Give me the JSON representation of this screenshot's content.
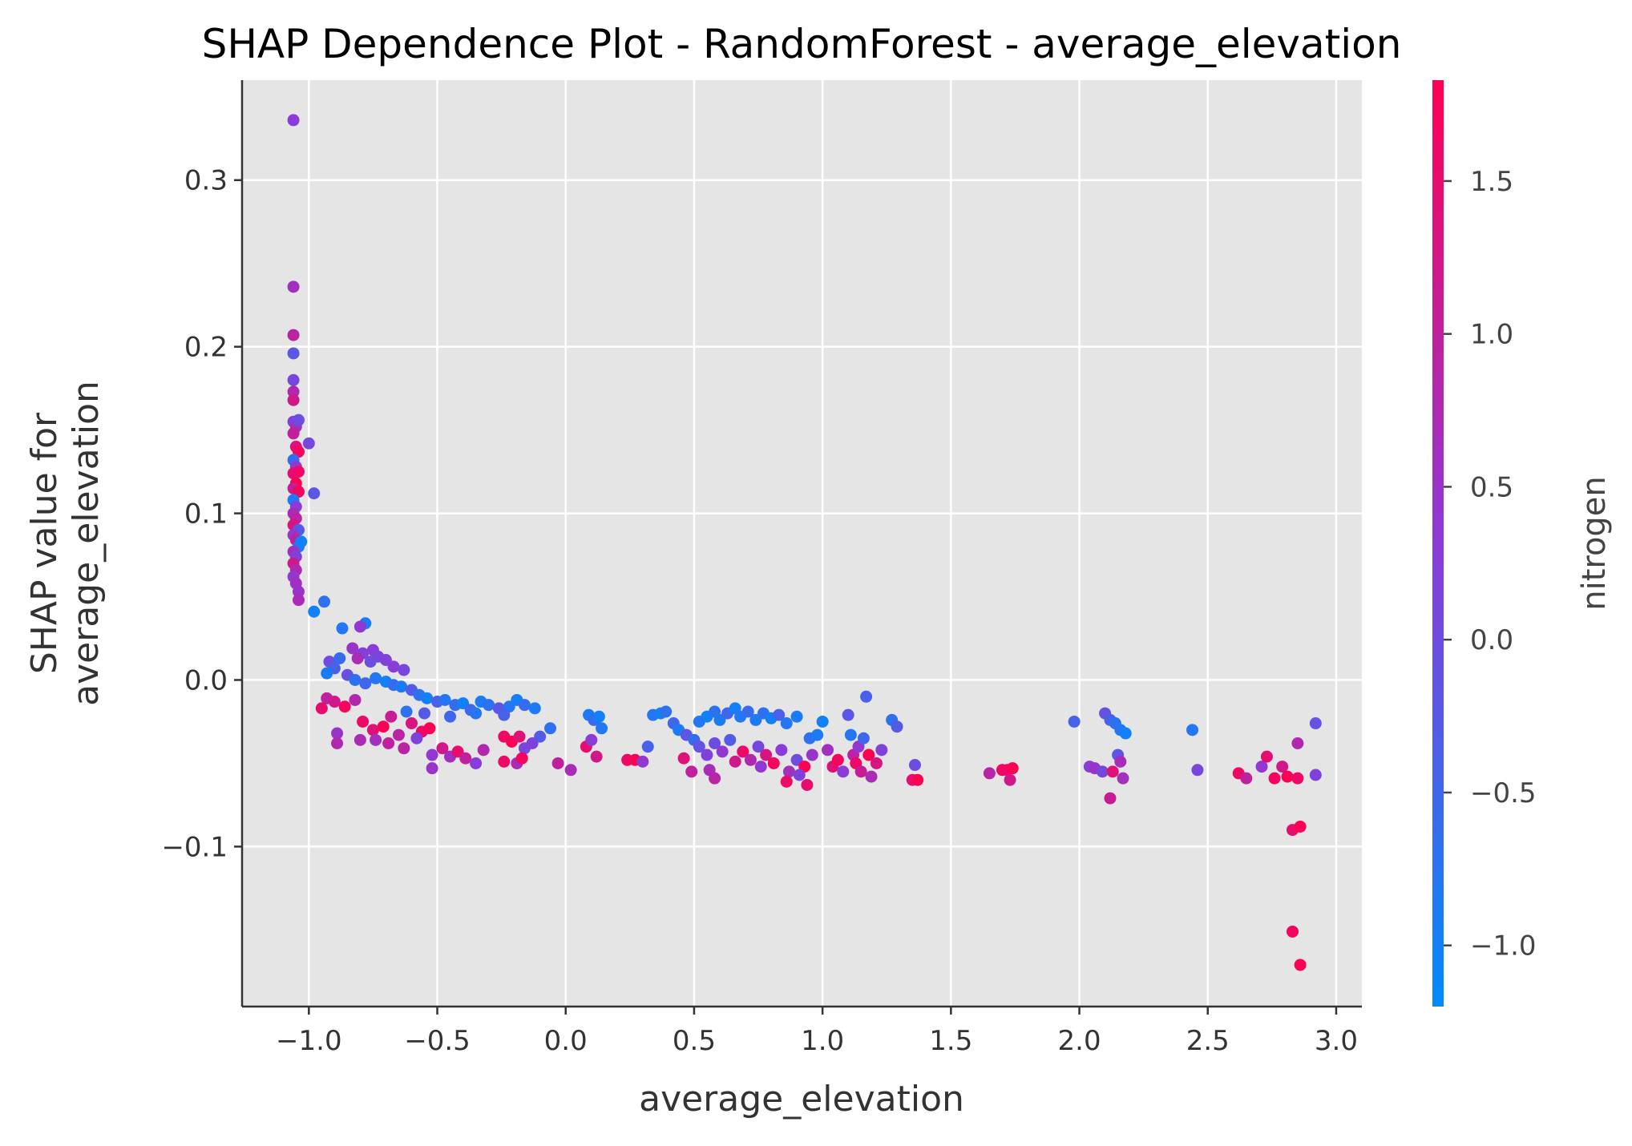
{
  "chart_data": {
    "type": "scatter",
    "title": "SHAP Dependence Plot - RandomForest - average_elevation",
    "xlabel": "average_elevation",
    "ylabel_line1": "SHAP value for",
    "ylabel_line2": "average_elevation",
    "xlim": [
      -1.26,
      3.1
    ],
    "ylim": [
      -0.196,
      0.36
    ],
    "x_ticks": [
      -1.0,
      -0.5,
      0.0,
      0.5,
      1.0,
      1.5,
      2.0,
      2.5,
      3.0
    ],
    "x_tick_labels": [
      "−1.0",
      "−0.5",
      "0.0",
      "0.5",
      "1.0",
      "1.5",
      "2.0",
      "2.5",
      "3.0"
    ],
    "y_ticks": [
      -0.1,
      0.0,
      0.1,
      0.2,
      0.3
    ],
    "y_tick_labels": [
      "−0.1",
      "0.0",
      "0.1",
      "0.2",
      "0.3"
    ],
    "grid": true,
    "colorbar": {
      "label": "nitrogen",
      "range": [
        -1.2,
        1.83
      ],
      "ticks": [
        -1.0,
        -0.5,
        0.0,
        0.5,
        1.0,
        1.5
      ],
      "tick_labels": [
        "−1.0",
        "−0.5",
        "0.0",
        "0.5",
        "1.0",
        "1.5"
      ],
      "colors": [
        "#008bfb",
        "#8b3bd8",
        "#ff0052"
      ]
    },
    "colors": {
      "plot_bg": "#e5e5e5",
      "grid": "#ffffff",
      "axis": "#333333"
    },
    "points": [
      {
        "x": -1.06,
        "y": 0.336,
        "c": 0.3
      },
      {
        "x": -1.06,
        "y": 0.236,
        "c": 0.6
      },
      {
        "x": -1.06,
        "y": 0.207,
        "c": 0.9
      },
      {
        "x": -1.06,
        "y": 0.196,
        "c": -0.2
      },
      {
        "x": -1.06,
        "y": 0.18,
        "c": 0.1
      },
      {
        "x": -1.06,
        "y": 0.173,
        "c": 0.8
      },
      {
        "x": -1.06,
        "y": 0.168,
        "c": 1.2
      },
      {
        "x": -1.06,
        "y": 0.155,
        "c": 0.2
      },
      {
        "x": -1.05,
        "y": 0.152,
        "c": 0.6
      },
      {
        "x": -1.06,
        "y": 0.148,
        "c": 1.0
      },
      {
        "x": -1.04,
        "y": 0.156,
        "c": 0.0
      },
      {
        "x": -1.05,
        "y": 0.14,
        "c": 1.4
      },
      {
        "x": -1.04,
        "y": 0.137,
        "c": 1.7
      },
      {
        "x": -1.06,
        "y": 0.132,
        "c": -0.6
      },
      {
        "x": -1.05,
        "y": 0.128,
        "c": 0.4
      },
      {
        "x": -1.06,
        "y": 0.124,
        "c": 1.5
      },
      {
        "x": -1.04,
        "y": 0.125,
        "c": 1.6
      },
      {
        "x": -1.05,
        "y": 0.118,
        "c": 1.8
      },
      {
        "x": -1.06,
        "y": 0.115,
        "c": 1.1
      },
      {
        "x": -1.04,
        "y": 0.113,
        "c": 1.7
      },
      {
        "x": -1.06,
        "y": 0.108,
        "c": -0.9
      },
      {
        "x": -1.05,
        "y": 0.104,
        "c": 0.3
      },
      {
        "x": -1.06,
        "y": 0.1,
        "c": 0.7
      },
      {
        "x": -1.05,
        "y": 0.097,
        "c": 0.9
      },
      {
        "x": -1.06,
        "y": 0.093,
        "c": 1.3
      },
      {
        "x": -1.04,
        "y": 0.09,
        "c": -0.3
      },
      {
        "x": -1.06,
        "y": 0.087,
        "c": 0.5
      },
      {
        "x": -1.05,
        "y": 0.084,
        "c": 1.0
      },
      {
        "x": -1.04,
        "y": 0.08,
        "c": -0.8
      },
      {
        "x": -1.06,
        "y": 0.077,
        "c": 0.6
      },
      {
        "x": -1.05,
        "y": 0.074,
        "c": 0.2
      },
      {
        "x": -1.06,
        "y": 0.07,
        "c": 1.2
      },
      {
        "x": -1.05,
        "y": 0.066,
        "c": 0.8
      },
      {
        "x": -1.06,
        "y": 0.062,
        "c": 0.4
      },
      {
        "x": -1.05,
        "y": 0.058,
        "c": 0.6
      },
      {
        "x": -1.04,
        "y": 0.053,
        "c": 0.5
      },
      {
        "x": -1.04,
        "y": 0.048,
        "c": 0.7
      },
      {
        "x": -1.03,
        "y": 0.083,
        "c": -1.0
      },
      {
        "x": -1.0,
        "y": 0.142,
        "c": 0.1
      },
      {
        "x": -0.98,
        "y": 0.112,
        "c": -0.2
      },
      {
        "x": -0.98,
        "y": 0.041,
        "c": -1.0
      },
      {
        "x": -0.94,
        "y": 0.047,
        "c": -0.7
      },
      {
        "x": -0.87,
        "y": 0.031,
        "c": -0.8
      },
      {
        "x": -0.78,
        "y": 0.034,
        "c": -0.9
      },
      {
        "x": -0.8,
        "y": 0.032,
        "c": 0.4
      },
      {
        "x": -0.83,
        "y": 0.019,
        "c": 0.5
      },
      {
        "x": -0.79,
        "y": 0.016,
        "c": 0.2
      },
      {
        "x": -0.75,
        "y": 0.018,
        "c": 0.3
      },
      {
        "x": -0.73,
        "y": 0.014,
        "c": 0.1
      },
      {
        "x": -0.81,
        "y": 0.013,
        "c": 0.7
      },
      {
        "x": -0.76,
        "y": 0.011,
        "c": 0.0
      },
      {
        "x": -0.7,
        "y": 0.012,
        "c": 0.2
      },
      {
        "x": -0.67,
        "y": 0.008,
        "c": 0.3
      },
      {
        "x": -0.63,
        "y": 0.006,
        "c": 0.1
      },
      {
        "x": -0.92,
        "y": 0.011,
        "c": 0.0
      },
      {
        "x": -0.88,
        "y": 0.013,
        "c": -0.6
      },
      {
        "x": -0.9,
        "y": 0.007,
        "c": -0.4
      },
      {
        "x": -0.93,
        "y": 0.004,
        "c": -0.9
      },
      {
        "x": -0.85,
        "y": 0.003,
        "c": -0.1
      },
      {
        "x": -0.82,
        "y": 0.0,
        "c": -0.7
      },
      {
        "x": -0.78,
        "y": -0.002,
        "c": -0.5
      },
      {
        "x": -0.74,
        "y": 0.001,
        "c": -0.8
      },
      {
        "x": -0.7,
        "y": -0.001,
        "c": -1.0
      },
      {
        "x": -0.67,
        "y": -0.003,
        "c": -0.6
      },
      {
        "x": -0.64,
        "y": -0.004,
        "c": -0.9
      },
      {
        "x": -0.6,
        "y": -0.006,
        "c": -0.3
      },
      {
        "x": -0.57,
        "y": -0.009,
        "c": -0.7
      },
      {
        "x": -0.54,
        "y": -0.011,
        "c": -1.0
      },
      {
        "x": -0.5,
        "y": -0.013,
        "c": -0.4
      },
      {
        "x": -0.47,
        "y": -0.012,
        "c": -0.8
      },
      {
        "x": -0.43,
        "y": -0.015,
        "c": -0.6
      },
      {
        "x": -0.4,
        "y": -0.014,
        "c": -1.0
      },
      {
        "x": -0.37,
        "y": -0.018,
        "c": -0.5
      },
      {
        "x": -0.33,
        "y": -0.013,
        "c": -0.9
      },
      {
        "x": -0.3,
        "y": -0.015,
        "c": -0.7
      },
      {
        "x": -0.26,
        "y": -0.017,
        "c": -0.2
      },
      {
        "x": -0.22,
        "y": -0.016,
        "c": -0.8
      },
      {
        "x": -0.19,
        "y": -0.012,
        "c": -1.0
      },
      {
        "x": -0.16,
        "y": -0.015,
        "c": -0.6
      },
      {
        "x": -0.12,
        "y": -0.017,
        "c": -0.9
      },
      {
        "x": -0.55,
        "y": -0.02,
        "c": -0.3
      },
      {
        "x": -0.45,
        "y": -0.022,
        "c": -0.5
      },
      {
        "x": -0.35,
        "y": -0.02,
        "c": -0.8
      },
      {
        "x": -0.62,
        "y": -0.019,
        "c": -0.7
      },
      {
        "x": -0.24,
        "y": -0.021,
        "c": -0.4
      },
      {
        "x": -0.93,
        "y": -0.011,
        "c": 1.0
      },
      {
        "x": -0.95,
        "y": -0.017,
        "c": 1.5
      },
      {
        "x": -0.9,
        "y": -0.013,
        "c": 1.2
      },
      {
        "x": -0.86,
        "y": -0.016,
        "c": 1.7
      },
      {
        "x": -0.82,
        "y": -0.012,
        "c": 0.8
      },
      {
        "x": -0.79,
        "y": -0.025,
        "c": 1.6
      },
      {
        "x": -0.75,
        "y": -0.03,
        "c": 1.4
      },
      {
        "x": -0.71,
        "y": -0.028,
        "c": 1.8
      },
      {
        "x": -0.68,
        "y": -0.022,
        "c": 1.1
      },
      {
        "x": -0.65,
        "y": -0.033,
        "c": 0.9
      },
      {
        "x": -0.6,
        "y": -0.026,
        "c": 1.3
      },
      {
        "x": -0.56,
        "y": -0.031,
        "c": 1.6
      },
      {
        "x": -0.53,
        "y": -0.029,
        "c": 1.8
      },
      {
        "x": -0.74,
        "y": -0.036,
        "c": 0.6
      },
      {
        "x": -0.69,
        "y": -0.038,
        "c": 1.0
      },
      {
        "x": -0.8,
        "y": -0.036,
        "c": 0.7
      },
      {
        "x": -0.89,
        "y": -0.032,
        "c": 0.5
      },
      {
        "x": -0.89,
        "y": -0.038,
        "c": 0.8
      },
      {
        "x": -0.63,
        "y": -0.041,
        "c": 0.9
      },
      {
        "x": -0.58,
        "y": -0.035,
        "c": 0.2
      },
      {
        "x": -0.52,
        "y": -0.045,
        "c": 0.4
      },
      {
        "x": -0.48,
        "y": -0.041,
        "c": 1.2
      },
      {
        "x": -0.45,
        "y": -0.046,
        "c": 0.6
      },
      {
        "x": -0.42,
        "y": -0.043,
        "c": 1.5
      },
      {
        "x": -0.39,
        "y": -0.047,
        "c": 1.0
      },
      {
        "x": -0.35,
        "y": -0.05,
        "c": 0.3
      },
      {
        "x": -0.32,
        "y": -0.042,
        "c": 0.8
      },
      {
        "x": -0.52,
        "y": -0.053,
        "c": 0.5
      },
      {
        "x": -0.24,
        "y": -0.034,
        "c": 1.6
      },
      {
        "x": -0.21,
        "y": -0.037,
        "c": 1.8
      },
      {
        "x": -0.18,
        "y": -0.034,
        "c": 1.4
      },
      {
        "x": -0.16,
        "y": -0.041,
        "c": 0.1
      },
      {
        "x": -0.13,
        "y": -0.038,
        "c": 0.2
      },
      {
        "x": -0.24,
        "y": -0.049,
        "c": 1.6
      },
      {
        "x": -0.19,
        "y": -0.05,
        "c": 0.7
      },
      {
        "x": -0.17,
        "y": -0.047,
        "c": 1.7
      },
      {
        "x": -0.1,
        "y": -0.034,
        "c": -0.3
      },
      {
        "x": -0.06,
        "y": -0.029,
        "c": -0.7
      },
      {
        "x": -0.03,
        "y": -0.05,
        "c": 1.0
      },
      {
        "x": 0.02,
        "y": -0.054,
        "c": 0.7
      },
      {
        "x": 0.08,
        "y": -0.04,
        "c": 1.5
      },
      {
        "x": 0.1,
        "y": -0.036,
        "c": 0.3
      },
      {
        "x": 0.12,
        "y": -0.046,
        "c": 1.2
      },
      {
        "x": 0.09,
        "y": -0.021,
        "c": -0.9
      },
      {
        "x": 0.11,
        "y": -0.024,
        "c": -0.6
      },
      {
        "x": 0.13,
        "y": -0.022,
        "c": -1.0
      },
      {
        "x": 0.14,
        "y": -0.029,
        "c": -0.8
      },
      {
        "x": 0.24,
        "y": -0.048,
        "c": 1.6
      },
      {
        "x": 0.27,
        "y": -0.048,
        "c": 1.8
      },
      {
        "x": 0.3,
        "y": -0.049,
        "c": 0.4
      },
      {
        "x": 0.32,
        "y": -0.04,
        "c": -0.4
      },
      {
        "x": 0.34,
        "y": -0.021,
        "c": -0.8
      },
      {
        "x": 0.37,
        "y": -0.02,
        "c": -1.0
      },
      {
        "x": 0.39,
        "y": -0.019,
        "c": -0.7
      },
      {
        "x": 0.42,
        "y": -0.026,
        "c": -0.5
      },
      {
        "x": 0.44,
        "y": -0.03,
        "c": -0.9
      },
      {
        "x": 0.47,
        "y": -0.033,
        "c": -0.2
      },
      {
        "x": 0.5,
        "y": -0.036,
        "c": -0.6
      },
      {
        "x": 0.52,
        "y": -0.025,
        "c": -0.8
      },
      {
        "x": 0.55,
        "y": -0.022,
        "c": -1.0
      },
      {
        "x": 0.58,
        "y": -0.019,
        "c": -0.7
      },
      {
        "x": 0.6,
        "y": -0.024,
        "c": -0.9
      },
      {
        "x": 0.63,
        "y": -0.02,
        "c": -0.5
      },
      {
        "x": 0.66,
        "y": -0.017,
        "c": -1.0
      },
      {
        "x": 0.68,
        "y": -0.022,
        "c": -0.8
      },
      {
        "x": 0.71,
        "y": -0.019,
        "c": -0.6
      },
      {
        "x": 0.74,
        "y": -0.024,
        "c": -0.9
      },
      {
        "x": 0.77,
        "y": -0.02,
        "c": -0.7
      },
      {
        "x": 0.8,
        "y": -0.023,
        "c": -1.0
      },
      {
        "x": 0.83,
        "y": -0.021,
        "c": -0.4
      },
      {
        "x": 0.86,
        "y": -0.026,
        "c": -0.8
      },
      {
        "x": 0.9,
        "y": -0.022,
        "c": -0.9
      },
      {
        "x": 0.52,
        "y": -0.04,
        "c": -0.1
      },
      {
        "x": 0.55,
        "y": -0.045,
        "c": 0.2
      },
      {
        "x": 0.58,
        "y": -0.038,
        "c": 0.0
      },
      {
        "x": 0.61,
        "y": -0.043,
        "c": 0.4
      },
      {
        "x": 0.64,
        "y": -0.036,
        "c": -0.3
      },
      {
        "x": 0.69,
        "y": -0.043,
        "c": 1.6
      },
      {
        "x": 0.72,
        "y": -0.048,
        "c": 0.8
      },
      {
        "x": 0.75,
        "y": -0.04,
        "c": 0.1
      },
      {
        "x": 0.78,
        "y": -0.045,
        "c": 1.3
      },
      {
        "x": 0.81,
        "y": -0.05,
        "c": 1.7
      },
      {
        "x": 0.84,
        "y": -0.042,
        "c": 0.3
      },
      {
        "x": 0.87,
        "y": -0.055,
        "c": 0.6
      },
      {
        "x": 0.9,
        "y": -0.048,
        "c": 0.0
      },
      {
        "x": 0.93,
        "y": -0.052,
        "c": 1.8
      },
      {
        "x": 0.96,
        "y": -0.045,
        "c": 0.5
      },
      {
        "x": 0.46,
        "y": -0.047,
        "c": 1.4
      },
      {
        "x": 0.49,
        "y": -0.055,
        "c": 1.0
      },
      {
        "x": 0.56,
        "y": -0.054,
        "c": 0.7
      },
      {
        "x": 0.58,
        "y": -0.059,
        "c": 0.9
      },
      {
        "x": 0.66,
        "y": -0.049,
        "c": 1.2
      },
      {
        "x": 0.76,
        "y": -0.052,
        "c": 0.4
      },
      {
        "x": 0.86,
        "y": -0.061,
        "c": 1.6
      },
      {
        "x": 0.91,
        "y": -0.057,
        "c": 0.2
      },
      {
        "x": 0.94,
        "y": -0.063,
        "c": 1.5
      },
      {
        "x": 0.95,
        "y": -0.035,
        "c": -0.7
      },
      {
        "x": 0.98,
        "y": -0.033,
        "c": -0.9
      },
      {
        "x": 1.0,
        "y": -0.025,
        "c": -1.0
      },
      {
        "x": 1.02,
        "y": -0.042,
        "c": 0.6
      },
      {
        "x": 1.04,
        "y": -0.052,
        "c": 1.4
      },
      {
        "x": 1.06,
        "y": -0.048,
        "c": 1.7
      },
      {
        "x": 1.08,
        "y": -0.055,
        "c": 0.3
      },
      {
        "x": 1.1,
        "y": -0.021,
        "c": -0.2
      },
      {
        "x": 1.11,
        "y": -0.033,
        "c": -0.8
      },
      {
        "x": 1.12,
        "y": -0.045,
        "c": 0.9
      },
      {
        "x": 1.13,
        "y": -0.05,
        "c": 1.6
      },
      {
        "x": 1.14,
        "y": -0.04,
        "c": 0.4
      },
      {
        "x": 1.15,
        "y": -0.055,
        "c": 1.1
      },
      {
        "x": 1.16,
        "y": -0.035,
        "c": -0.5
      },
      {
        "x": 1.17,
        "y": -0.01,
        "c": -0.4
      },
      {
        "x": 1.18,
        "y": -0.045,
        "c": 1.8
      },
      {
        "x": 1.19,
        "y": -0.058,
        "c": 0.7
      },
      {
        "x": 1.21,
        "y": -0.05,
        "c": 1.3
      },
      {
        "x": 1.23,
        "y": -0.042,
        "c": 0.2
      },
      {
        "x": 1.27,
        "y": -0.024,
        "c": -0.7
      },
      {
        "x": 1.29,
        "y": -0.028,
        "c": -0.3
      },
      {
        "x": 1.35,
        "y": -0.06,
        "c": 1.5
      },
      {
        "x": 1.37,
        "y": -0.06,
        "c": 1.8
      },
      {
        "x": 1.36,
        "y": -0.051,
        "c": 0.0
      },
      {
        "x": 1.65,
        "y": -0.056,
        "c": 0.9
      },
      {
        "x": 1.7,
        "y": -0.054,
        "c": 1.7
      },
      {
        "x": 1.72,
        "y": -0.054,
        "c": 1.6
      },
      {
        "x": 1.73,
        "y": -0.06,
        "c": 1.2
      },
      {
        "x": 1.74,
        "y": -0.053,
        "c": 1.8
      },
      {
        "x": 1.98,
        "y": -0.025,
        "c": -0.4
      },
      {
        "x": 2.04,
        "y": -0.052,
        "c": 0.3
      },
      {
        "x": 2.06,
        "y": -0.053,
        "c": 0.5
      },
      {
        "x": 2.09,
        "y": -0.055,
        "c": 0.1
      },
      {
        "x": 2.1,
        "y": -0.02,
        "c": -0.1
      },
      {
        "x": 2.12,
        "y": -0.024,
        "c": -0.4
      },
      {
        "x": 2.14,
        "y": -0.026,
        "c": -0.7
      },
      {
        "x": 2.15,
        "y": -0.045,
        "c": -0.2
      },
      {
        "x": 2.16,
        "y": -0.049,
        "c": 0.7
      },
      {
        "x": 2.17,
        "y": -0.059,
        "c": 0.6
      },
      {
        "x": 2.16,
        "y": -0.03,
        "c": -0.8
      },
      {
        "x": 2.18,
        "y": -0.032,
        "c": -1.0
      },
      {
        "x": 2.13,
        "y": -0.055,
        "c": 1.4
      },
      {
        "x": 2.12,
        "y": -0.071,
        "c": 1.1
      },
      {
        "x": 2.44,
        "y": -0.03,
        "c": -0.8
      },
      {
        "x": 2.46,
        "y": -0.054,
        "c": 0.1
      },
      {
        "x": 2.62,
        "y": -0.056,
        "c": 1.6
      },
      {
        "x": 2.65,
        "y": -0.059,
        "c": 1.0
      },
      {
        "x": 2.71,
        "y": -0.052,
        "c": 0.4
      },
      {
        "x": 2.73,
        "y": -0.046,
        "c": 1.5
      },
      {
        "x": 2.76,
        "y": -0.059,
        "c": 1.7
      },
      {
        "x": 2.79,
        "y": -0.052,
        "c": 1.2
      },
      {
        "x": 2.81,
        "y": -0.058,
        "c": 1.8
      },
      {
        "x": 2.85,
        "y": -0.038,
        "c": 0.8
      },
      {
        "x": 2.85,
        "y": -0.059,
        "c": 1.6
      },
      {
        "x": 2.83,
        "y": -0.09,
        "c": 1.5
      },
      {
        "x": 2.86,
        "y": -0.088,
        "c": 1.8
      },
      {
        "x": 2.83,
        "y": -0.151,
        "c": 1.7
      },
      {
        "x": 2.86,
        "y": -0.171,
        "c": 1.8
      },
      {
        "x": 2.92,
        "y": -0.026,
        "c": -0.1
      },
      {
        "x": 2.92,
        "y": -0.057,
        "c": 0.2
      }
    ]
  }
}
